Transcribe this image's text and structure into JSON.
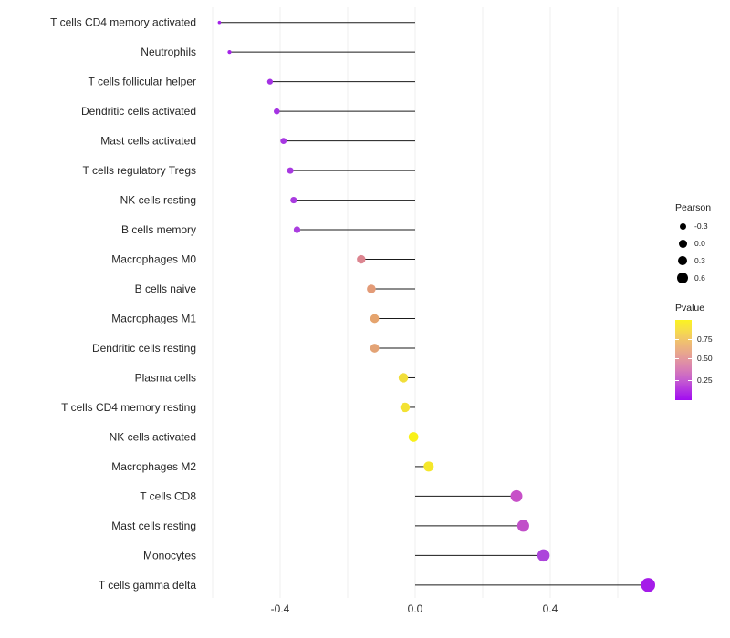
{
  "chart_data": {
    "type": "scatter",
    "subtype": "lollipop",
    "title": "",
    "xlabel": "",
    "ylabel": "",
    "x_axis": {
      "tick_values": [
        -0.4,
        0.0,
        0.4
      ],
      "tick_labels": [
        "-0.4",
        "0.0",
        "0.4"
      ],
      "gridline_values": [
        -0.6,
        -0.4,
        -0.2,
        0.0,
        0.2,
        0.4,
        0.6
      ],
      "range": [
        -0.68,
        0.82
      ],
      "grid_color": "#efefef"
    },
    "baseline": 0.0,
    "stem_color": "#1a1a1a",
    "categories": [
      "T cells CD4 memory activated",
      "Neutrophils",
      "T cells follicular helper",
      "Dendritic cells activated",
      "Mast cells activated",
      "T cells regulatory  Tregs",
      "NK cells resting",
      "B cells memory",
      "Macrophages M0",
      "B cells naive",
      "Macrophages M1",
      "Dendritic cells resting",
      "Plasma cells",
      "T cells CD4 memory resting",
      "NK cells activated",
      "Macrophages M2",
      "T cells CD8",
      "Mast cells resting",
      "Monocytes",
      "T cells gamma delta"
    ],
    "series": [
      {
        "name": "Pearson",
        "values": [
          -0.58,
          -0.55,
          -0.43,
          -0.41,
          -0.39,
          -0.37,
          -0.36,
          -0.35,
          -0.16,
          -0.13,
          -0.12,
          -0.12,
          -0.035,
          -0.03,
          -0.005,
          0.04,
          0.3,
          0.32,
          0.38,
          0.69
        ]
      }
    ],
    "point_colors": [
      "#A322E9",
      "#A424E8",
      "#A432E4",
      "#A534E3",
      "#A737E2",
      "#A839E1",
      "#A93BE0",
      "#AA3EDF",
      "#DC8590",
      "#E39B77",
      "#E5A46E",
      "#E3A375",
      "#F1DE3A",
      "#F3E233",
      "#F9F118",
      "#F5E72A",
      "#C750C8",
      "#C14FC9",
      "#AC44DB",
      "#A51CE9"
    ],
    "legend_pearson": {
      "title": "Pearson",
      "entries": [
        {
          "label": "-0.3",
          "diameter": 7
        },
        {
          "label": "0.0",
          "diameter": 9
        },
        {
          "label": "0.3",
          "diameter": 10.5
        },
        {
          "label": "0.6",
          "diameter": 12
        }
      ],
      "circle_color": "#000000"
    },
    "legend_pvalue": {
      "title": "Pvalue",
      "tick_labels": [
        "0.75",
        "0.50",
        "0.25"
      ],
      "tick_pos_pct": [
        24,
        48,
        74.5
      ],
      "gradient_stops": [
        [
          "0%",
          "#A10CF1"
        ],
        [
          "12%",
          "#B232E2"
        ],
        [
          "25%",
          "#C55DCF"
        ],
        [
          "38%",
          "#D77CB6"
        ],
        [
          "50%",
          "#E295A0"
        ],
        [
          "62%",
          "#EAAC87"
        ],
        [
          "75%",
          "#F1C46B"
        ],
        [
          "88%",
          "#F7DF47"
        ],
        [
          "100%",
          "#FBF322"
        ]
      ]
    },
    "style": {
      "label_color": "#262626",
      "tick_label_color": "#333333",
      "label_font_size": 12,
      "tick_font_size": 12
    }
  }
}
